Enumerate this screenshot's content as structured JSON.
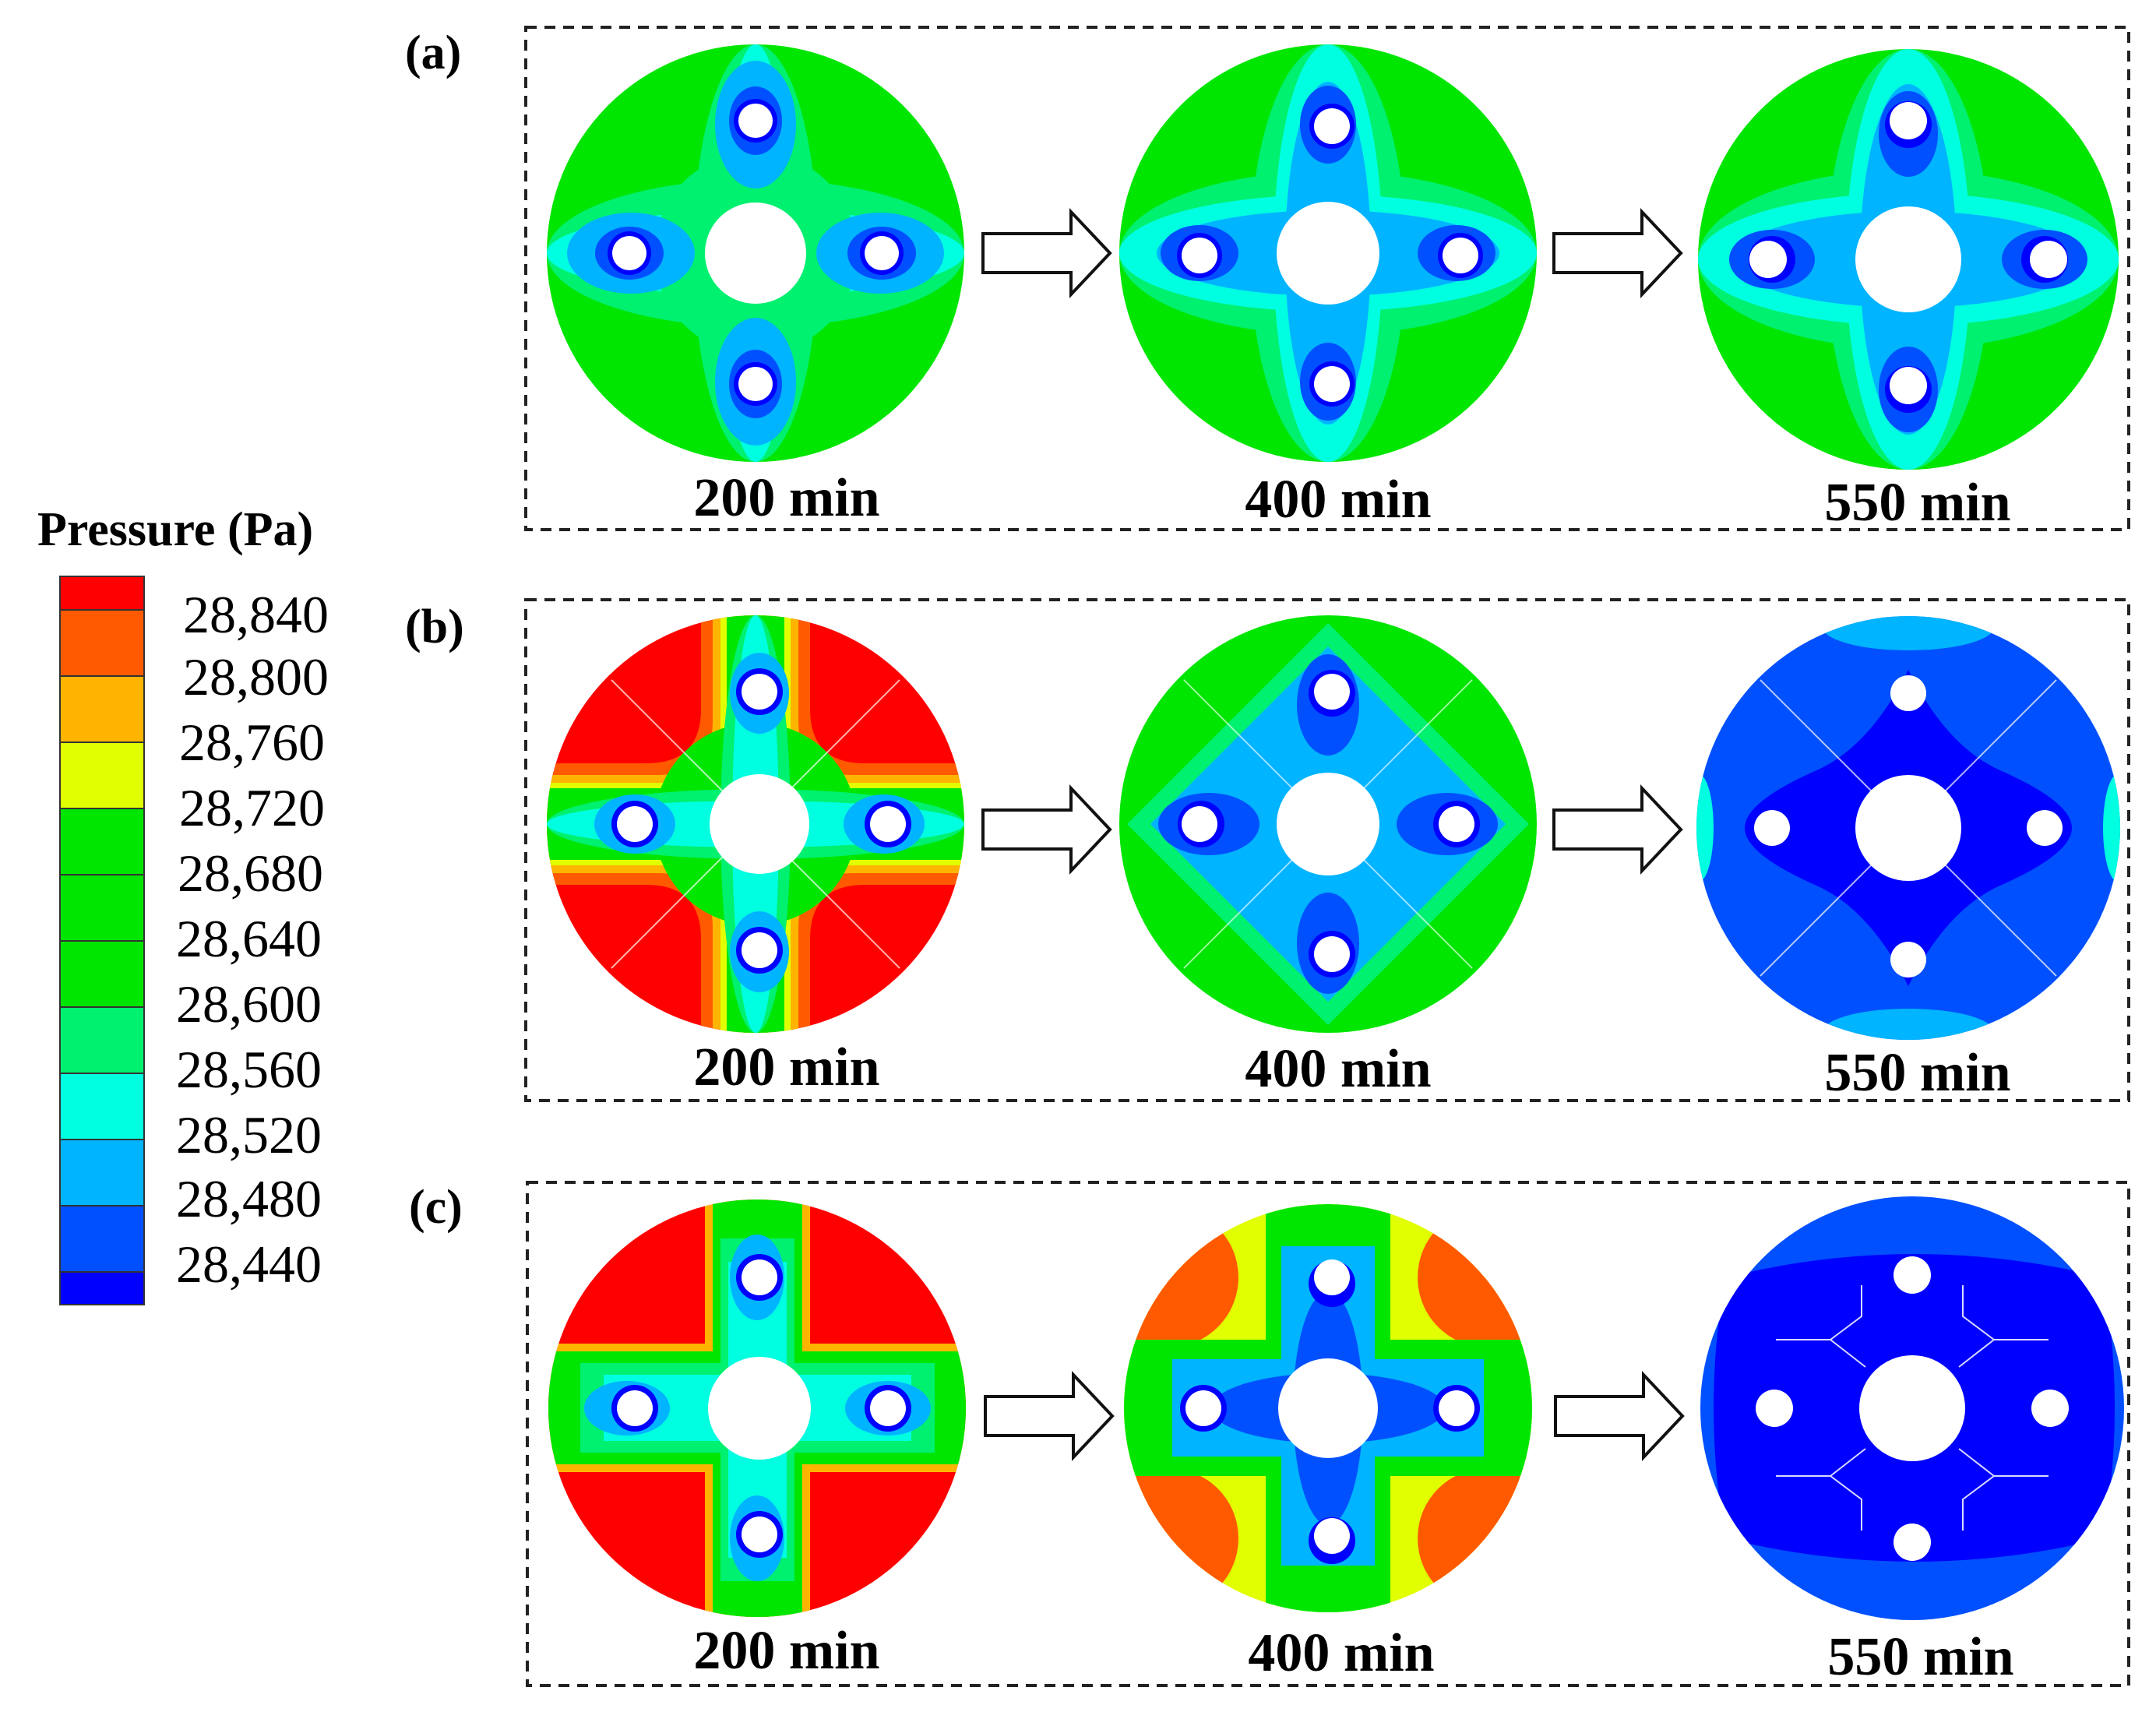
{
  "legend": {
    "title": "Pressure (Pa)",
    "colors": [
      "#ff0000",
      "#ff5a00",
      "#ffb400",
      "#e1ff00",
      "#00e600",
      "#00e600",
      "#00e600",
      "#00e600",
      "#00f070",
      "#00ffe0",
      "#00b4ff",
      "#0050ff",
      "#0000ff"
    ],
    "ticks": [
      "28,840",
      "28,800",
      "28,760",
      "28,720",
      "28,680",
      "28,640",
      "28,600",
      "28,560",
      "28,520",
      "28,480",
      "28,440"
    ]
  },
  "panels": [
    {
      "label": "(a)",
      "times": [
        "200 min",
        "400 min",
        "550 min"
      ]
    },
    {
      "label": "(b)",
      "times": [
        "200 min",
        "400 min",
        "550 min"
      ]
    },
    {
      "label": "(c)",
      "times": [
        "200 min",
        "400 min",
        "550 min"
      ]
    }
  ]
}
